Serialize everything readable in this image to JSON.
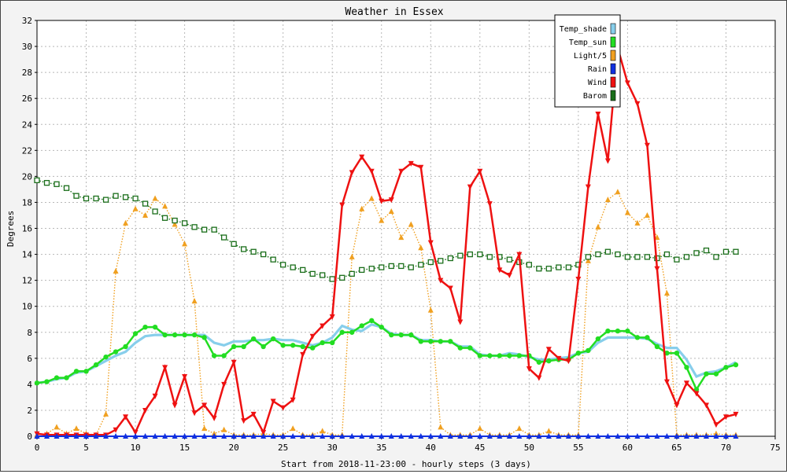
{
  "chart_data": {
    "type": "line",
    "title": "Weather in Essex",
    "xlabel": "Start from 2018-11-23:00 - hourly steps (3 days)",
    "ylabel": "Degrees",
    "xlim": [
      0,
      75
    ],
    "ylim": [
      0,
      32
    ],
    "xticks": [
      0,
      5,
      10,
      15,
      20,
      25,
      30,
      35,
      40,
      45,
      50,
      55,
      60,
      65,
      70,
      75
    ],
    "yticks": [
      0,
      2,
      4,
      6,
      8,
      10,
      12,
      14,
      16,
      18,
      20,
      22,
      24,
      26,
      28,
      30,
      32
    ],
    "grid": true,
    "legend_position": "top-right",
    "x": [
      0,
      1,
      2,
      3,
      4,
      5,
      6,
      7,
      8,
      9,
      10,
      11,
      12,
      13,
      14,
      15,
      16,
      17,
      18,
      19,
      20,
      21,
      22,
      23,
      24,
      25,
      26,
      27,
      28,
      29,
      30,
      31,
      32,
      33,
      34,
      35,
      36,
      37,
      38,
      39,
      40,
      41,
      42,
      43,
      44,
      45,
      46,
      47,
      48,
      49,
      50,
      51,
      52,
      53,
      54,
      55,
      56,
      57,
      58,
      59,
      60,
      61,
      62,
      63,
      64,
      65,
      66,
      67,
      68,
      69,
      70,
      71
    ],
    "series": [
      {
        "name": "Temp_shade",
        "color": "#87ceeb",
        "style": "solid",
        "marker": "none",
        "values": [
          4.1,
          4.2,
          4.4,
          4.5,
          4.9,
          5.0,
          5.4,
          5.8,
          6.2,
          6.5,
          7.2,
          7.7,
          7.8,
          7.8,
          7.8,
          7.8,
          7.8,
          7.8,
          7.2,
          7.0,
          7.3,
          7.3,
          7.4,
          7.4,
          7.5,
          7.4,
          7.4,
          7.2,
          7.0,
          7.2,
          7.6,
          8.5,
          8.2,
          8.1,
          8.6,
          8.4,
          7.9,
          7.8,
          7.8,
          7.4,
          7.4,
          7.3,
          7.3,
          6.9,
          6.9,
          6.3,
          6.2,
          6.2,
          6.4,
          6.3,
          6.1,
          5.9,
          5.9,
          6.0,
          6.1,
          6.4,
          6.5,
          7.2,
          7.6,
          7.6,
          7.6,
          7.6,
          7.5,
          7.1,
          6.8,
          6.8,
          5.9,
          4.6,
          4.9,
          5.0,
          5.3,
          5.7
        ]
      },
      {
        "name": "Temp_sun",
        "color": "#22dd22",
        "style": "solid",
        "marker": "circle",
        "values": [
          4.1,
          4.2,
          4.5,
          4.5,
          5.0,
          5.0,
          5.5,
          6.1,
          6.5,
          6.9,
          7.9,
          8.4,
          8.4,
          7.8,
          7.8,
          7.8,
          7.8,
          7.6,
          6.2,
          6.2,
          6.9,
          6.9,
          7.5,
          6.9,
          7.5,
          7.0,
          7.0,
          6.9,
          6.8,
          7.2,
          7.2,
          8.0,
          8.0,
          8.5,
          8.9,
          8.4,
          7.8,
          7.8,
          7.8,
          7.3,
          7.3,
          7.3,
          7.3,
          6.8,
          6.8,
          6.2,
          6.2,
          6.2,
          6.2,
          6.2,
          6.2,
          5.7,
          5.8,
          5.9,
          5.9,
          6.4,
          6.6,
          7.5,
          8.1,
          8.1,
          8.1,
          7.6,
          7.6,
          6.9,
          6.4,
          6.4,
          5.3,
          3.6,
          4.8,
          4.8,
          5.3,
          5.5
        ]
      },
      {
        "name": "Light/5",
        "color": "#f0a020",
        "style": "dotted",
        "marker": "triangle-up",
        "values": [
          0.1,
          0.2,
          0.7,
          0.2,
          0.6,
          0.2,
          0.1,
          1.7,
          12.7,
          16.4,
          17.5,
          17.0,
          18.3,
          17.7,
          16.3,
          14.8,
          10.4,
          0.6,
          0.2,
          0.5,
          0.1,
          0.1,
          0.1,
          0.2,
          0.1,
          0.1,
          0.6,
          0.1,
          0.1,
          0.4,
          0.1,
          0.1,
          13.8,
          17.5,
          18.3,
          16.6,
          17.3,
          15.3,
          16.3,
          14.5,
          9.7,
          0.7,
          0.1,
          0.1,
          0.1,
          0.6,
          0.1,
          0.1,
          0.1,
          0.6,
          0.1,
          0.1,
          0.4,
          0.1,
          0.1,
          0.1,
          13.5,
          16.1,
          18.2,
          18.8,
          17.2,
          16.4,
          17.0,
          15.3,
          11.0,
          0.1,
          0.1,
          0.1,
          0.1,
          0.2,
          0.1,
          0.1
        ]
      },
      {
        "name": "Rain",
        "color": "#1030e0",
        "style": "solid",
        "marker": "triangle-up",
        "values": [
          0,
          0,
          0,
          0,
          0,
          0,
          0,
          0,
          0,
          0,
          0,
          0,
          0,
          0,
          0,
          0,
          0,
          0,
          0,
          0,
          0,
          0,
          0,
          0,
          0,
          0,
          0,
          0,
          0,
          0,
          0,
          0,
          0,
          0,
          0,
          0,
          0,
          0,
          0,
          0,
          0,
          0,
          0,
          0,
          0,
          0,
          0,
          0,
          0,
          0,
          0,
          0,
          0,
          0,
          0,
          0,
          0,
          0,
          0,
          0,
          0,
          0,
          0,
          0,
          0,
          0,
          0,
          0,
          0,
          0,
          0,
          0
        ]
      },
      {
        "name": "Wind",
        "color": "#ee1111",
        "style": "solid",
        "marker": "triangle-down",
        "values": [
          0.2,
          0.1,
          0.1,
          0.1,
          0.1,
          0.1,
          0.1,
          0.1,
          0.5,
          1.5,
          0.3,
          2.0,
          3.1,
          5.3,
          2.4,
          4.6,
          1.8,
          2.4,
          1.4,
          4.0,
          5.7,
          1.2,
          1.7,
          0.3,
          2.7,
          2.2,
          2.8,
          6.3,
          7.7,
          8.5,
          9.2,
          17.8,
          20.3,
          21.5,
          20.4,
          18.1,
          18.2,
          20.4,
          21.0,
          20.7,
          14.9,
          12.0,
          11.4,
          8.8,
          19.2,
          20.4,
          17.9,
          12.8,
          12.4,
          14.0,
          5.2,
          4.5,
          6.7,
          6.0,
          5.8,
          12.1,
          19.2,
          24.8,
          21.2,
          29.9,
          27.2,
          25.6,
          22.4,
          12.9,
          4.2,
          2.4,
          4.1,
          3.3,
          2.4,
          0.9,
          1.5,
          1.7
        ]
      },
      {
        "name": "Barom",
        "color": "#1a6e1a",
        "style": "dotted",
        "marker": "square",
        "values": [
          19.7,
          19.5,
          19.4,
          19.1,
          18.5,
          18.3,
          18.3,
          18.2,
          18.5,
          18.4,
          18.3,
          17.9,
          17.3,
          16.8,
          16.6,
          16.4,
          16.1,
          15.9,
          15.9,
          15.3,
          14.8,
          14.4,
          14.2,
          14.0,
          13.6,
          13.2,
          13.0,
          12.8,
          12.5,
          12.4,
          12.1,
          12.2,
          12.5,
          12.8,
          12.9,
          13.0,
          13.1,
          13.1,
          13.0,
          13.2,
          13.4,
          13.5,
          13.7,
          13.9,
          14.0,
          14.0,
          13.8,
          13.8,
          13.6,
          13.4,
          13.2,
          12.9,
          12.9,
          13.0,
          13.0,
          13.2,
          13.8,
          14.0,
          14.2,
          14.0,
          13.8,
          13.8,
          13.8,
          13.7,
          14.0,
          13.6,
          13.8,
          14.1,
          14.3,
          13.8,
          14.2,
          14.2
        ]
      }
    ]
  }
}
